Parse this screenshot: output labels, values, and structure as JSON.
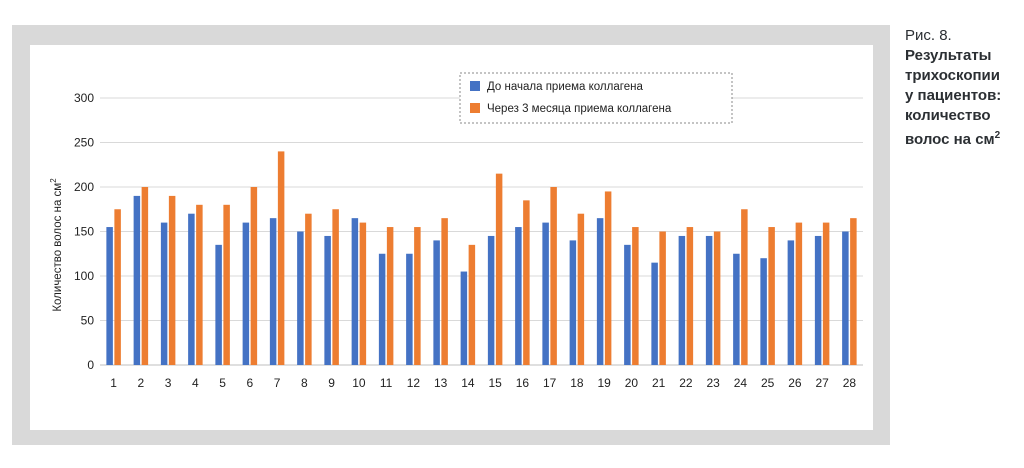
{
  "caption": {
    "figure": "Рис. 8.",
    "lines": [
      "Результаты",
      "трихоскопии",
      "у пациентов:",
      "количество"
    ],
    "last_line": "волос на см",
    "sup": "2"
  },
  "chart_data": {
    "type": "bar",
    "categories": [
      "1",
      "2",
      "3",
      "4",
      "5",
      "6",
      "7",
      "8",
      "9",
      "10",
      "11",
      "12",
      "13",
      "14",
      "15",
      "16",
      "17",
      "18",
      "19",
      "20",
      "21",
      "22",
      "23",
      "24",
      "25",
      "26",
      "27",
      "28"
    ],
    "series": [
      {
        "name": "До начала приема коллагена",
        "color": "#4472c4",
        "values": [
          155,
          190,
          160,
          170,
          135,
          160,
          165,
          150,
          145,
          165,
          125,
          125,
          140,
          105,
          145,
          155,
          160,
          140,
          165,
          135,
          115,
          145,
          145,
          125,
          120,
          140,
          145,
          150
        ]
      },
      {
        "name": "Через 3 месяца приема коллагена",
        "color": "#ed7d31",
        "values": [
          175,
          200,
          190,
          180,
          180,
          200,
          240,
          170,
          175,
          160,
          155,
          155,
          165,
          135,
          215,
          185,
          200,
          170,
          195,
          155,
          150,
          155,
          150,
          175,
          155,
          160,
          160,
          165
        ]
      }
    ],
    "ylabel": "Количество волос на см",
    "ylabel_sup": "2",
    "ylim": [
      0,
      300
    ],
    "yticks": [
      0,
      50,
      100,
      150,
      200,
      250,
      300
    ],
    "grid": true,
    "legend": "top-center"
  }
}
